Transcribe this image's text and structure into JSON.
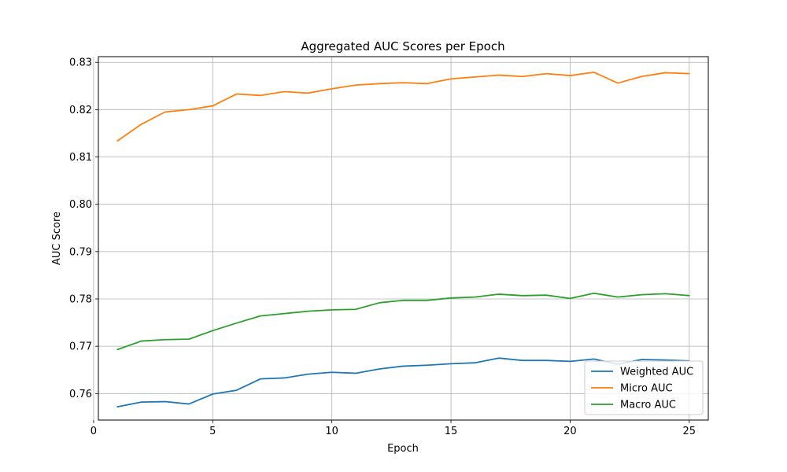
{
  "chart_data": {
    "type": "line",
    "title": "Aggregated AUC Scores per Epoch",
    "xlabel": "Epoch",
    "ylabel": "AUC Score",
    "x": [
      1,
      2,
      3,
      4,
      5,
      6,
      7,
      8,
      9,
      10,
      11,
      12,
      13,
      14,
      15,
      16,
      17,
      18,
      19,
      20,
      21,
      22,
      23,
      24,
      25
    ],
    "xlim": [
      0.2,
      25.8
    ],
    "ylim": [
      0.7544,
      0.8312
    ],
    "xticks": [
      0,
      5,
      10,
      15,
      20,
      25
    ],
    "xtick_labels": [
      "0",
      "5",
      "10",
      "15",
      "20",
      "25"
    ],
    "yticks": [
      0.76,
      0.77,
      0.78,
      0.79,
      0.8,
      0.81,
      0.82,
      0.83
    ],
    "ytick_labels": [
      "0.76",
      "0.77",
      "0.78",
      "0.79",
      "0.80",
      "0.81",
      "0.82",
      "0.83"
    ],
    "grid": true,
    "legend_position": "lower-right",
    "series": [
      {
        "name": "Weighted AUC",
        "color": "#1f77b4",
        "values": [
          0.7572,
          0.7582,
          0.7583,
          0.7578,
          0.7599,
          0.7607,
          0.7631,
          0.7633,
          0.7641,
          0.7645,
          0.7643,
          0.7652,
          0.7658,
          0.766,
          0.7663,
          0.7665,
          0.7675,
          0.767,
          0.767,
          0.7668,
          0.7673,
          0.7662,
          0.7672,
          0.7671,
          0.7669
        ]
      },
      {
        "name": "Micro AUC",
        "color": "#ff7f0e",
        "values": [
          0.8134,
          0.8169,
          0.8195,
          0.82,
          0.8208,
          0.8233,
          0.823,
          0.8238,
          0.8235,
          0.8244,
          0.8252,
          0.8255,
          0.8257,
          0.8255,
          0.8265,
          0.8269,
          0.8273,
          0.827,
          0.8276,
          0.8272,
          0.8279,
          0.8256,
          0.827,
          0.8278,
          0.8276
        ]
      },
      {
        "name": "Macro AUC",
        "color": "#2ca02c",
        "values": [
          0.7693,
          0.7711,
          0.7714,
          0.7715,
          0.7733,
          0.7749,
          0.7764,
          0.7769,
          0.7774,
          0.7777,
          0.7778,
          0.7792,
          0.7797,
          0.7797,
          0.7802,
          0.7804,
          0.781,
          0.7807,
          0.7808,
          0.7801,
          0.7812,
          0.7804,
          0.7809,
          0.7811,
          0.7807
        ]
      }
    ]
  }
}
